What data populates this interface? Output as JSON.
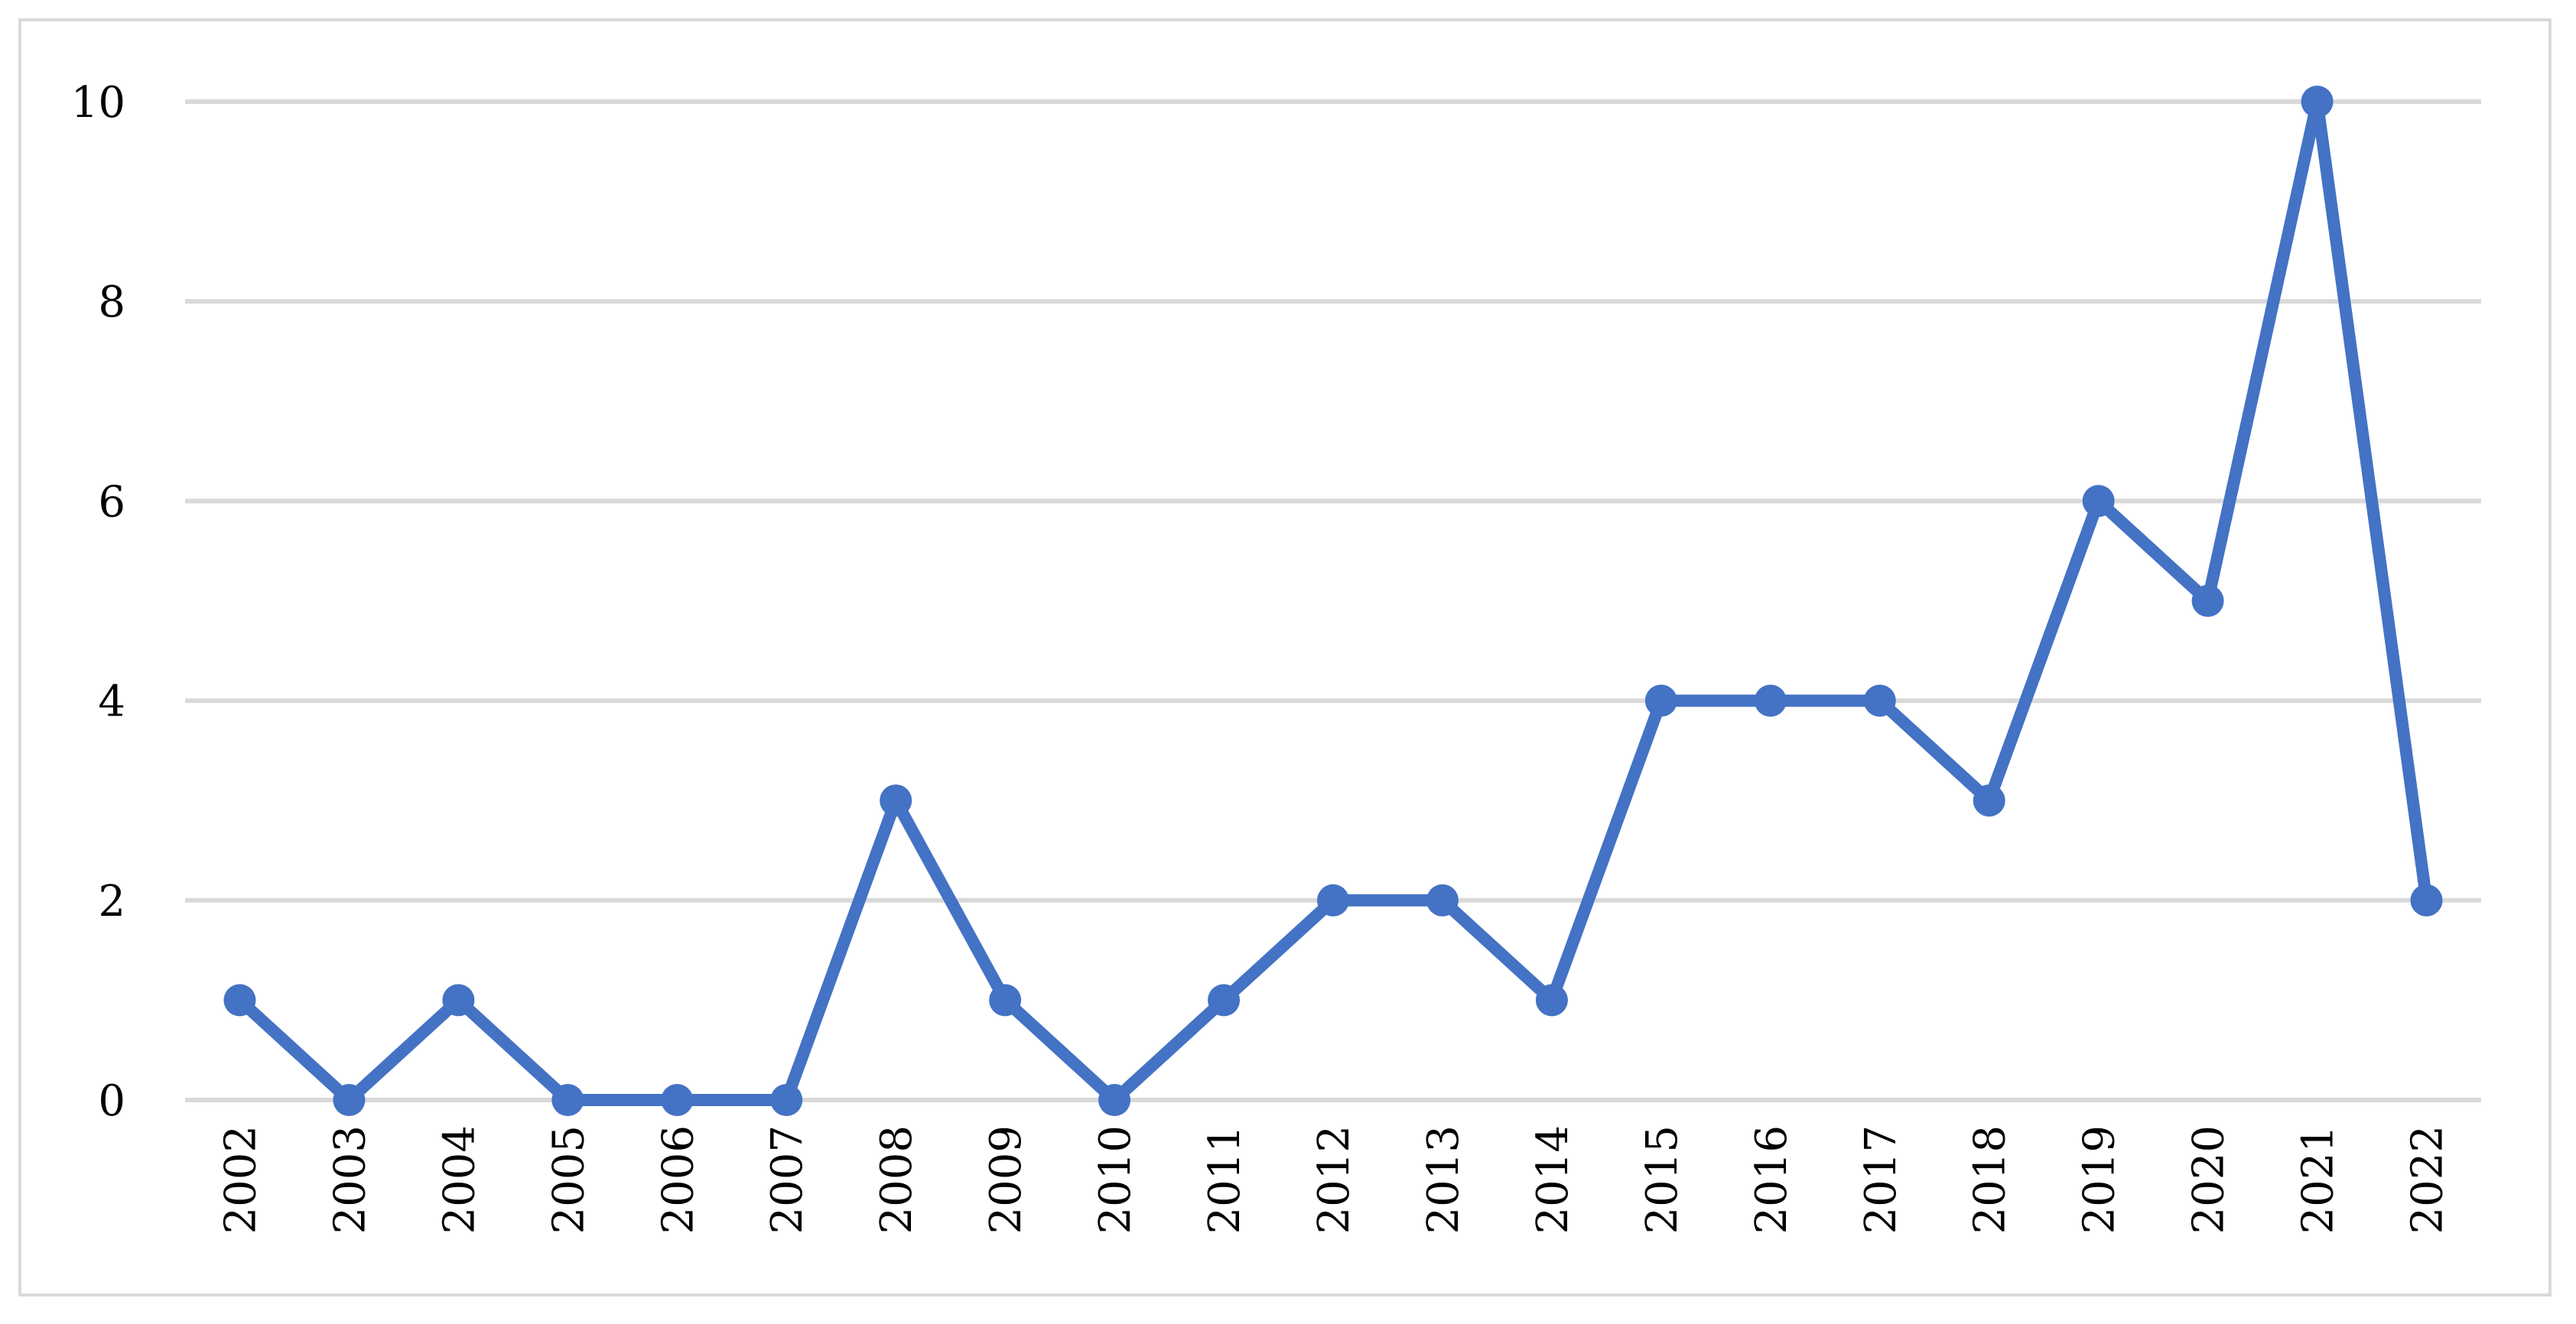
{
  "chart_data": {
    "type": "line",
    "title": "",
    "xlabel": "",
    "ylabel": "",
    "categories": [
      "2002",
      "2003",
      "2004",
      "2005",
      "2006",
      "2007",
      "2008",
      "2009",
      "2010",
      "2011",
      "2012",
      "2013",
      "2014",
      "2015",
      "2016",
      "2017",
      "2018",
      "2019",
      "2020",
      "2021",
      "2022"
    ],
    "series": [
      {
        "values": [
          1,
          0,
          1,
          0,
          0,
          0,
          3,
          1,
          0,
          1,
          2,
          2,
          1,
          4,
          4,
          4,
          3,
          6,
          5,
          10,
          2
        ],
        "color": "#4472c4"
      }
    ],
    "ylim": [
      0,
      10
    ],
    "yticks": [
      "0",
      "2",
      "4",
      "6",
      "8",
      "10"
    ],
    "grid": true,
    "legend": "none",
    "colors": {
      "series": "#4472c4",
      "grid": "#d9d9d9",
      "frame": "#d9d9d9",
      "text": "#000000"
    }
  }
}
